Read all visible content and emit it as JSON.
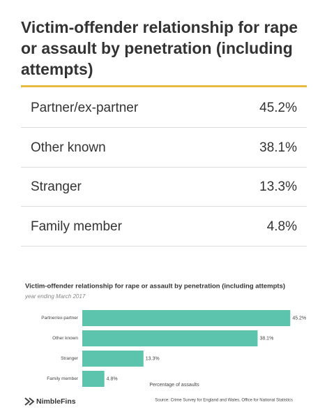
{
  "header": {
    "title": "Victim-offender relationship for rape or assault by penetration (including attempts)"
  },
  "table": {
    "rows": [
      [
        "Partner/ex-partner",
        "45.2%"
      ],
      [
        "Other known",
        "38.1%"
      ],
      [
        "Stranger",
        "13.3%"
      ],
      [
        "Family member",
        "4.8%"
      ]
    ]
  },
  "chart_data": {
    "type": "bar",
    "orientation": "horizontal",
    "title": "Victim-offender relationship for rape or assault by penetration (including attempts)",
    "subtitle": "year ending March 2017",
    "x_label": "Percentage of assaults",
    "categories": [
      "Partner/ex-partner",
      "Other known",
      "Stranger",
      "Family member"
    ],
    "values": [
      45.2,
      38.1,
      13.3,
      4.8
    ],
    "value_labels": [
      "45.2%",
      "38.1%",
      "13.3%",
      "4.8%"
    ],
    "color": "#5cc3ad"
  },
  "footer": {
    "logo": "NimbleFins",
    "source": "Source: Crime Survey for England and Wales, Office for National Statistics"
  }
}
